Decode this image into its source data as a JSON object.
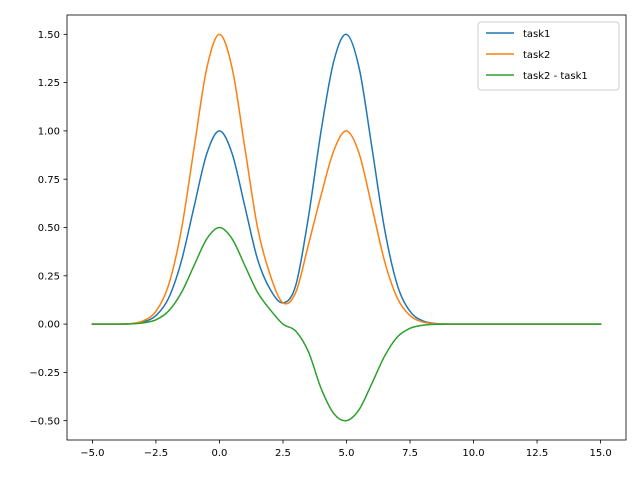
{
  "chart_data": {
    "type": "line",
    "title": "",
    "xlabel": "",
    "ylabel": "",
    "xlim": [
      -6.0,
      16.0
    ],
    "ylim": [
      -0.6,
      1.6
    ],
    "xticks": [
      -5.0,
      -2.5,
      0.0,
      2.5,
      5.0,
      7.5,
      10.0,
      12.5,
      15.0
    ],
    "xtick_labels": [
      "−5.0",
      "−2.5",
      "0.0",
      "2.5",
      "5.0",
      "7.5",
      "10.0",
      "12.5",
      "15.0"
    ],
    "yticks": [
      -0.5,
      -0.25,
      0.0,
      0.25,
      0.5,
      0.75,
      1.0,
      1.25,
      1.5
    ],
    "ytick_labels": [
      "−0.50",
      "−0.25",
      "0.00",
      "0.25",
      "0.50",
      "0.75",
      "1.00",
      "1.25",
      "1.50"
    ],
    "grid": false,
    "legend_position": "top-right",
    "x": [
      -5.0,
      -4.5,
      -4.0,
      -3.5,
      -3.0,
      -2.5,
      -2.0,
      -1.5,
      -1.0,
      -0.5,
      0.0,
      0.5,
      1.0,
      1.5,
      2.0,
      2.5,
      3.0,
      3.5,
      4.0,
      4.5,
      5.0,
      5.5,
      6.0,
      6.5,
      7.0,
      7.5,
      8.0,
      8.5,
      9.0,
      9.5,
      10.0,
      11.0,
      12.0,
      13.0,
      14.0,
      15.0
    ],
    "series": [
      {
        "name": "task1",
        "color": "#1f77b4",
        "values": [
          0.0,
          0.0,
          0.0,
          0.002,
          0.011,
          0.044,
          0.135,
          0.325,
          0.607,
          0.882,
          1.0,
          0.882,
          0.609,
          0.335,
          0.179,
          0.11,
          0.199,
          0.553,
          1.0,
          1.361,
          1.5,
          1.324,
          0.914,
          0.491,
          0.202,
          0.066,
          0.017,
          0.003,
          0.0,
          0.0,
          0.0,
          0.0,
          0.0,
          0.0,
          0.0,
          0.0
        ]
      },
      {
        "name": "task2",
        "color": "#ff7f0e",
        "values": [
          0.0,
          0.0,
          0.0,
          0.002,
          0.017,
          0.066,
          0.203,
          0.487,
          0.91,
          1.324,
          1.5,
          1.324,
          0.912,
          0.499,
          0.253,
          0.11,
          0.163,
          0.41,
          0.667,
          0.898,
          1.0,
          0.882,
          0.607,
          0.325,
          0.135,
          0.044,
          0.011,
          0.002,
          0.0,
          0.0,
          0.0,
          0.0,
          0.0,
          0.0,
          0.0,
          0.0
        ]
      },
      {
        "name": "task2 - task1",
        "color": "#2ca02c",
        "values": [
          0.0,
          0.0,
          0.0,
          0.001,
          0.006,
          0.022,
          0.068,
          0.162,
          0.303,
          0.441,
          0.5,
          0.441,
          0.303,
          0.164,
          0.074,
          0.0,
          -0.036,
          -0.143,
          -0.333,
          -0.463,
          -0.5,
          -0.442,
          -0.307,
          -0.166,
          -0.067,
          -0.022,
          -0.006,
          -0.001,
          0.0,
          0.0,
          0.0,
          0.0,
          0.0,
          0.0,
          0.0,
          0.0
        ]
      }
    ]
  }
}
